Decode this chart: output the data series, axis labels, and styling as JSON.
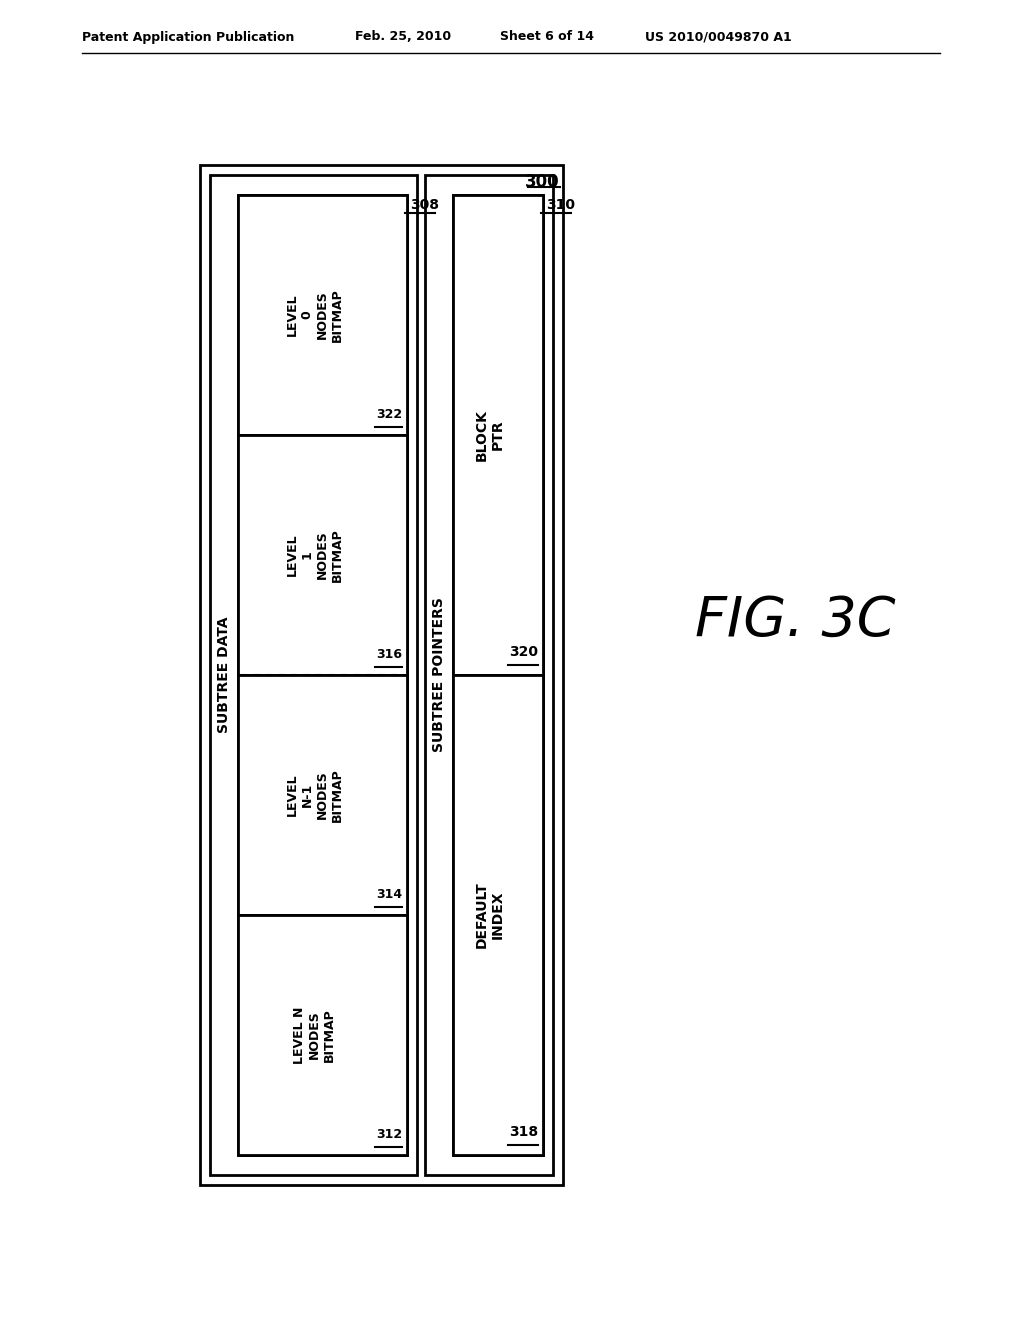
{
  "bg_color": "#ffffff",
  "header_text": "Patent Application Publication",
  "header_date": "Feb. 25, 2010",
  "header_sheet": "Sheet 6 of 14",
  "header_patent": "US 2010/0049870 A1",
  "fig_label": "FIG. 3C",
  "outer_box_label": "300",
  "subtree_pointers_label": "SUBTREE POINTERS",
  "subtree_data_label": "SUBTREE DATA",
  "block_ptr_label": "BLOCK\nPTR",
  "block_ptr_num": "320",
  "default_index_label": "DEFAULT\nINDEX",
  "default_index_num": "318",
  "pointers_box_num": "310",
  "data_box_num": "308",
  "level0_label": "LEVEL\n0\nNODES\nBITMAP",
  "level0_num": "322",
  "level1_label": "LEVEL\n1\nNODES\nBITMAP",
  "level1_num": "316",
  "leveln1_label": "LEVEL\nN-1\nNODES\nBITMAP",
  "leveln1_num": "314",
  "leveln_label": "LEVEL N\nNODES\nBITMAP",
  "leveln_num": "312"
}
